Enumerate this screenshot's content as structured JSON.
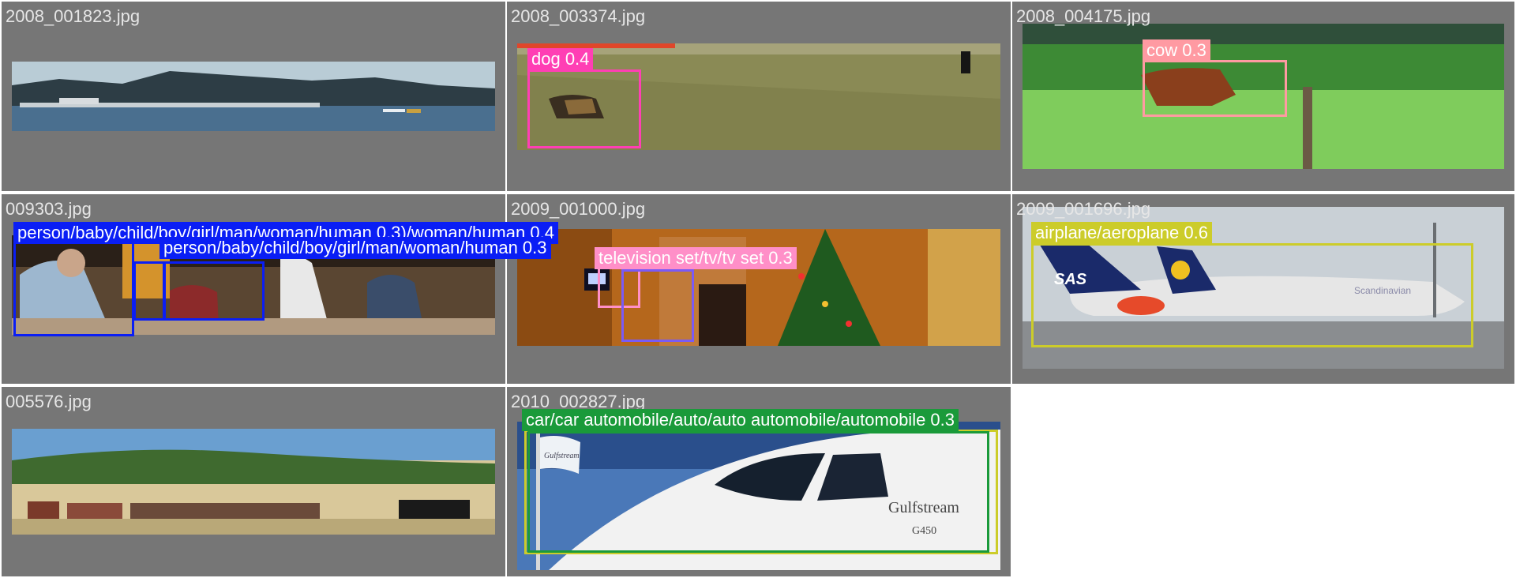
{
  "tiles": [
    {
      "filename": "2008_001823.jpg",
      "detections": []
    },
    {
      "filename": "2008_003374.jpg",
      "detections": [
        {
          "label": "dog 0.4",
          "color": "#ff3fb4"
        }
      ]
    },
    {
      "filename": "2008_004175.jpg",
      "detections": [
        {
          "label": "cow 0.3",
          "color": "#ff9aa2"
        }
      ]
    },
    {
      "filename": "009303.jpg",
      "detections": [
        {
          "label": "person/baby/child/boy/girl/man/woman/human 0.3)/woman/human 0.4",
          "color": "#0a1ef5"
        },
        {
          "label": "person/baby/child/boy/girl/man/woman/human 0.3",
          "color": "#0a1ef5"
        }
      ]
    },
    {
      "filename": "2009_001000.jpg",
      "detections": [
        {
          "label": "television set/tv/tv set 0.3",
          "color": "#ff8fc8"
        }
      ]
    },
    {
      "filename": "2009_001696.jpg",
      "detections": [
        {
          "label": "airplane/aeroplane 0.6",
          "color": "#cccc2a"
        }
      ]
    },
    {
      "filename": "005576.jpg",
      "detections": []
    },
    {
      "filename": "2010_002827.jpg",
      "detections": [
        {
          "label": "car/car automobile/auto/auto automobile/automobile 0.3",
          "color": "#1a9a3a"
        }
      ]
    }
  ],
  "photo_text": {
    "flag": "Gulfstream",
    "plane": "Gulfstream",
    "plane_model": "G450",
    "sas": "SAS",
    "scandinavian": "Scandinavian"
  }
}
